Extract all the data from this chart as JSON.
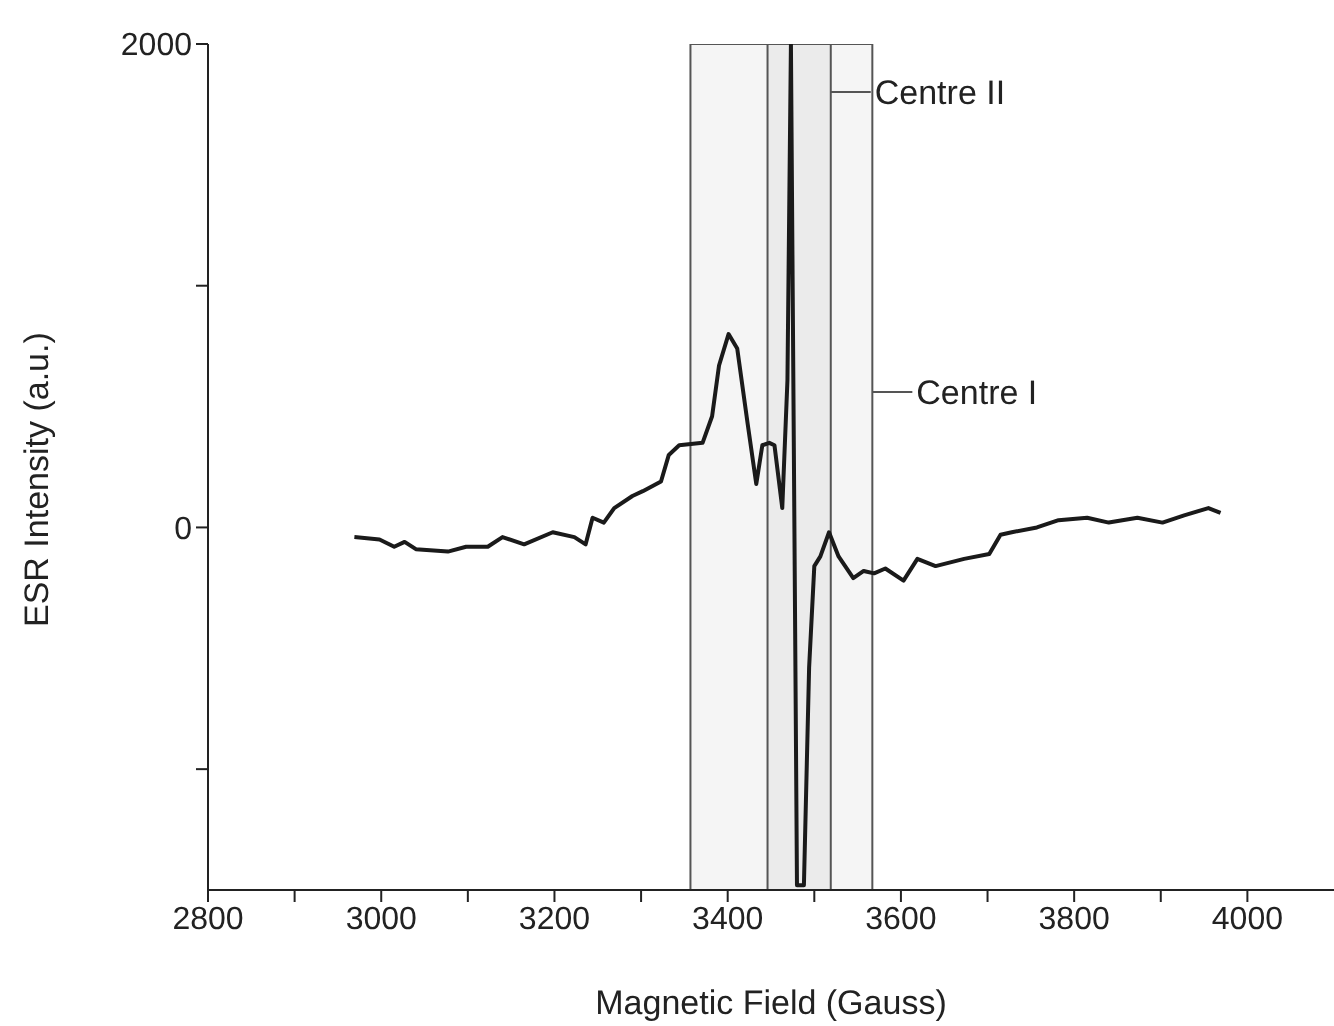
{
  "chart_data": {
    "type": "line",
    "xlabel": "Magnetic Field (Gauss)",
    "ylabel": "ESR Intensity (a.u.)",
    "xlim": [
      2800,
      4100
    ],
    "ylim": [
      -1500,
      2000
    ],
    "xticks": [
      2800,
      {
        "value": 2900,
        "label": null
      },
      3000,
      {
        "value": 3100,
        "label": null
      },
      3200,
      {
        "value": 3300,
        "label": null
      },
      3400,
      {
        "value": 3500,
        "label": null
      },
      3600,
      {
        "value": 3700,
        "label": null
      },
      3800,
      {
        "value": 3900,
        "label": null
      },
      4000
    ],
    "yticks": [
      {
        "value": -1000,
        "label": null
      },
      0,
      {
        "value": 1000,
        "label": null
      },
      2000
    ],
    "marker": "none",
    "line_style": "solid",
    "series": [
      {
        "color": "#1a1a1a",
        "x": [
          2969,
          2998,
          3015,
          3027,
          3040,
          3077,
          3098,
          3123,
          3140,
          3165,
          3198,
          3223,
          3236,
          3244,
          3257,
          3269,
          3290,
          3302,
          3323,
          3332,
          3344,
          3371,
          3382,
          3390,
          3401,
          3411,
          3423,
          3433,
          3440,
          3448,
          3454,
          3463,
          3469,
          3473,
          3480,
          3488,
          3494,
          3500,
          3507,
          3517,
          3528,
          3545,
          3557,
          3569,
          3582,
          3603,
          3619,
          3640,
          3673,
          3702,
          3715,
          3728,
          3757,
          3782,
          3815,
          3840,
          3873,
          3902,
          3927,
          3955,
          3969
        ],
        "values": [
          -40,
          -50,
          -80,
          -60,
          -90,
          -100,
          -80,
          -80,
          -40,
          -70,
          -20,
          -40,
          -70,
          40,
          20,
          80,
          130,
          150,
          190,
          300,
          340,
          350,
          460,
          670,
          800,
          740,
          430,
          180,
          340,
          350,
          340,
          80,
          610,
          2000,
          -1480,
          -1480,
          -580,
          -160,
          -120,
          -20,
          -120,
          -210,
          -180,
          -190,
          -170,
          -220,
          -130,
          -160,
          -130,
          -110,
          -30,
          -20,
          0,
          30,
          40,
          20,
          40,
          20,
          50,
          80,
          60
        ]
      }
    ],
    "bands": [
      {
        "axis": "x",
        "from": 3357,
        "to": 3567,
        "color": "#555555",
        "label": "Centre I"
      },
      {
        "axis": "x",
        "from": 3446,
        "to": 3519,
        "color": "#555555",
        "label": "Centre II"
      }
    ]
  }
}
